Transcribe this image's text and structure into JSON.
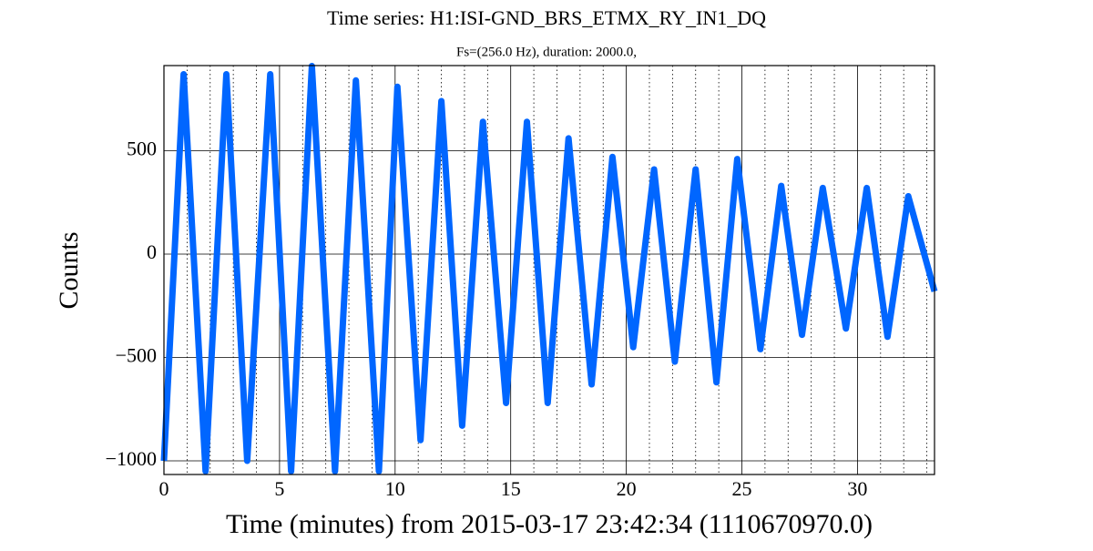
{
  "chart_data": {
    "type": "line",
    "title": "Time series:  H1:ISI-GND_BRS_ETMX_RY_IN1_DQ",
    "subtitle": "Fs=(256.0 Hz), duration: 2000.0,",
    "x_label": "Time (minutes) from 2015-03-17 23:42:34 (1110670970.0)",
    "y_label": "Counts",
    "xlim": [
      0,
      33.333
    ],
    "ylim": [
      -1066,
      912
    ],
    "xticks": [
      0,
      5,
      10,
      15,
      20,
      25,
      30
    ],
    "xminorticks": [
      1,
      2,
      3,
      4,
      6,
      7,
      8,
      9,
      11,
      12,
      13,
      14,
      16,
      17,
      18,
      19,
      21,
      22,
      23,
      24,
      26,
      27,
      28,
      29,
      31,
      32,
      33
    ],
    "yticks": [
      {
        "value": -1000,
        "label": "−1000"
      },
      {
        "value": -500,
        "label": "−500"
      },
      0,
      500
    ],
    "grid": true,
    "series": [
      {
        "name": "H1:ISI-GND_BRS_ETMX_RY_IN1_DQ",
        "color": "#0066ff",
        "x": [
          0,
          0.85,
          1.8,
          2.7,
          3.6,
          4.6,
          5.5,
          6.4,
          7.4,
          8.3,
          9.3,
          10.1,
          11.1,
          12.0,
          12.9,
          13.8,
          14.8,
          15.7,
          16.6,
          17.5,
          18.5,
          19.4,
          20.3,
          21.2,
          22.1,
          23.0,
          23.9,
          24.8,
          25.8,
          26.7,
          27.6,
          28.5,
          29.5,
          30.4,
          31.3,
          32.2,
          33.333
        ],
        "values": [
          -1000,
          870,
          -1050,
          870,
          -1000,
          870,
          -1050,
          910,
          -1050,
          840,
          -1050,
          810,
          -900,
          740,
          -830,
          640,
          -720,
          640,
          -720,
          560,
          -630,
          470,
          -450,
          410,
          -520,
          410,
          -620,
          460,
          -460,
          330,
          -390,
          320,
          -360,
          320,
          -400,
          280,
          -180
        ]
      }
    ]
  }
}
